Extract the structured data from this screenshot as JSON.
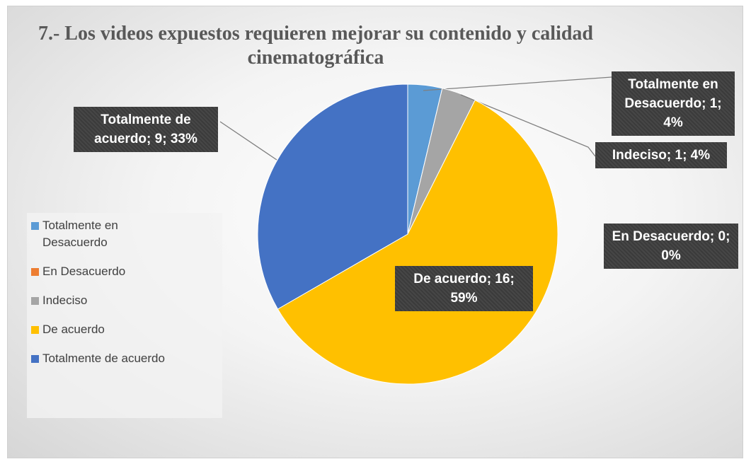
{
  "chart_data": {
    "type": "pie",
    "title": "7.- Los videos expuestos requieren mejorar su contenido y calidad cinematográfica",
    "categories": [
      "Totalmente en Desacuerdo",
      "En Desacuerdo",
      "Indeciso",
      "De acuerdo",
      "Totalmente de acuerdo"
    ],
    "values": [
      1,
      0,
      1,
      16,
      9
    ],
    "value_labels": [
      "Totalmente en Desacuerdo; 1; 4%",
      "En Desacuerdo; 0; 0%",
      "Indeciso; 1; 4%",
      "De acuerdo; 16; 59%",
      "Totalmente de acuerdo; 9; 33%"
    ],
    "colors": [
      "#5b9bd5",
      "#ed7d31",
      "#a5a5a5",
      "#ffc000",
      "#4472c4"
    ],
    "legend": "left"
  }
}
